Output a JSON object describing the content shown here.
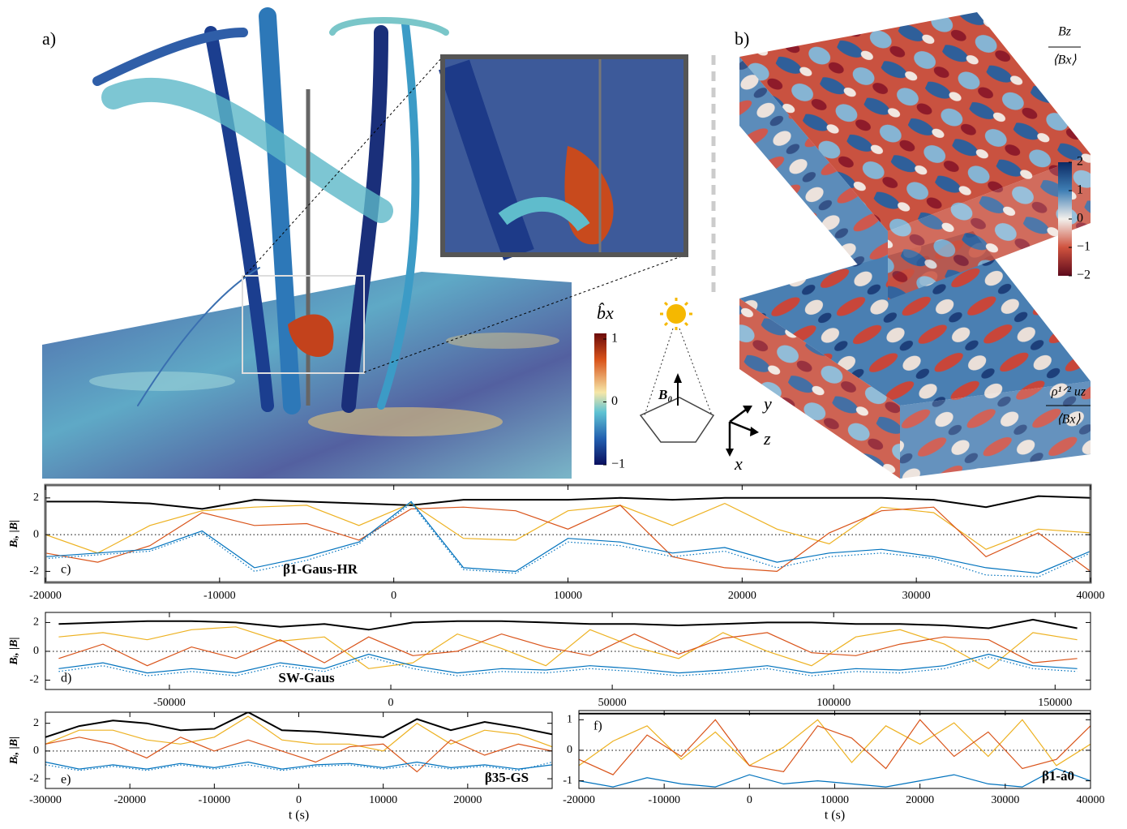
{
  "panel_a": {
    "label": "a)",
    "colorbar": {
      "label": "b̂x",
      "lim": [
        -1,
        1
      ],
      "ticks": [
        1,
        0,
        {
          "value": -1,
          "label": "−1"
        }
      ]
    },
    "diagram": {
      "field": "B₀",
      "axes": [
        "y",
        "z",
        "x"
      ]
    }
  },
  "panel_b": {
    "label": "b)",
    "top_label": {
      "numerator": "Bz",
      "denominator": "⟨Bx⟩"
    },
    "bottom_label": {
      "numerator": "ρ¹ᐟ² uz",
      "denominator": "⟨Bx⟩"
    },
    "colorbar": {
      "lim": [
        -2,
        2
      ],
      "ticks": [
        2,
        1,
        0,
        {
          "value": -1,
          "label": "−1"
        },
        {
          "value": -2,
          "label": "−2"
        }
      ]
    }
  },
  "chart_data": [
    {
      "type": "line",
      "panel_label": "c)",
      "annotation": "β1-Gaus-HR",
      "ylabel": "Bᵢ, |B|",
      "hline": 0,
      "x": [
        -20000,
        -17000,
        -14000,
        -11000,
        -8000,
        -5000,
        -2000,
        1000,
        4000,
        7000,
        10000,
        13000,
        16000,
        19000,
        22000,
        25000,
        28000,
        31000,
        34000,
        37000,
        40000
      ],
      "xlim": [
        -20000,
        40000
      ],
      "xticks": [
        -20000,
        -10000,
        0,
        10000,
        20000,
        30000,
        40000
      ],
      "ylim": [
        -2.6,
        2.7
      ],
      "yticks": [
        -2,
        0,
        2
      ],
      "series": [
        {
          "color": "#000000",
          "values": [
            1.8,
            1.8,
            1.7,
            1.4,
            1.9,
            1.8,
            1.7,
            1.6,
            1.9,
            1.9,
            1.9,
            2.0,
            1.9,
            2.0,
            2.0,
            2.0,
            2.0,
            1.9,
            1.5,
            2.1,
            2.0
          ]
        },
        {
          "color": "#edb120",
          "values": [
            0,
            -1,
            0.5,
            1.3,
            1.5,
            1.6,
            0.5,
            1.7,
            -0.2,
            -0.3,
            1.3,
            1.6,
            0.5,
            1.7,
            0.3,
            -0.5,
            1.5,
            1.2,
            -0.8,
            0.3,
            0.1
          ]
        },
        {
          "color": "#d95319",
          "values": [
            -1,
            -1.5,
            -0.6,
            1.2,
            0.5,
            0.6,
            -0.3,
            1.4,
            1.5,
            1.3,
            0.3,
            1.6,
            -1.2,
            -1.8,
            -2.0,
            0.1,
            1.3,
            1.5,
            -1.2,
            0.1,
            -2
          ]
        },
        {
          "color": "#0072bd",
          "values": [
            -1.2,
            -1.0,
            -0.8,
            0.2,
            -1.8,
            -1.2,
            -0.4,
            1.8,
            -1.8,
            -2.0,
            -0.2,
            -0.4,
            -1.0,
            -0.7,
            -1.5,
            -1.0,
            -0.8,
            -1.2,
            -1.8,
            -2.1,
            -0.9
          ]
        },
        {
          "color": "#0072bd",
          "linestyle": "dotted",
          "values": [
            -1.3,
            -1.1,
            -0.9,
            0.1,
            -2.0,
            -1.4,
            -0.5,
            1.7,
            -1.9,
            -2.1,
            -0.4,
            -0.6,
            -1.2,
            -0.9,
            -1.8,
            -1.2,
            -1.0,
            -1.3,
            -2.2,
            -2.3,
            -1.0
          ]
        }
      ]
    },
    {
      "type": "line",
      "panel_label": "d)",
      "annotation": "SW-Gaus",
      "ylabel": "Bᵢ, |B|",
      "hline": 0,
      "x": [
        -75000,
        -65000,
        -55000,
        -45000,
        -35000,
        -25000,
        -15000,
        -5000,
        5000,
        15000,
        25000,
        35000,
        45000,
        55000,
        65000,
        75000,
        85000,
        95000,
        105000,
        115000,
        125000,
        135000,
        145000,
        155000
      ],
      "xlim": [
        -78000,
        158000
      ],
      "xticks": [
        -50000,
        0,
        50000,
        100000,
        150000
      ],
      "ylim": [
        -2.65,
        2.7
      ],
      "yticks": [
        -2,
        0,
        2
      ],
      "series": [
        {
          "color": "#000000",
          "values": [
            1.9,
            2.0,
            2.1,
            2.1,
            2.0,
            1.7,
            1.9,
            1.5,
            2.0,
            2.1,
            2.1,
            2.0,
            1.9,
            1.9,
            1.8,
            1.9,
            2.0,
            2.0,
            1.9,
            1.9,
            1.8,
            1.6,
            2.2,
            1.6
          ]
        },
        {
          "color": "#edb120",
          "values": [
            1.0,
            1.3,
            0.8,
            1.5,
            1.7,
            0.7,
            1.0,
            -1.2,
            -0.8,
            1.2,
            0.2,
            -1.0,
            1.5,
            0.3,
            -0.5,
            1.3,
            0.0,
            -1.0,
            1.0,
            1.5,
            0.5,
            -1.2,
            1.3,
            0.8
          ]
        },
        {
          "color": "#d95319",
          "values": [
            -0.5,
            0.5,
            -1.0,
            0.3,
            -0.5,
            0.8,
            -0.8,
            1.0,
            -0.3,
            0.0,
            1.2,
            0.3,
            -0.3,
            1.2,
            -0.2,
            0.9,
            1.3,
            -0.1,
            -0.3,
            0.5,
            1.0,
            0.8,
            -0.8,
            -0.5
          ]
        },
        {
          "color": "#0072bd",
          "values": [
            -1.2,
            -0.8,
            -1.5,
            -1.2,
            -1.5,
            -0.8,
            -1.2,
            -0.2,
            -1.0,
            -1.5,
            -1.2,
            -1.3,
            -1.0,
            -1.2,
            -1.5,
            -1.3,
            -1.0,
            -1.5,
            -1.2,
            -1.3,
            -1.0,
            -0.2,
            -1.0,
            -1.2
          ]
        },
        {
          "color": "#0072bd",
          "linestyle": "dotted",
          "values": [
            -1.4,
            -1.0,
            -1.7,
            -1.4,
            -1.7,
            -1.0,
            -1.4,
            -0.4,
            -1.2,
            -1.7,
            -1.4,
            -1.5,
            -1.2,
            -1.4,
            -1.7,
            -1.5,
            -1.2,
            -1.7,
            -1.4,
            -1.5,
            -1.2,
            -0.4,
            -1.2,
            -1.4
          ]
        }
      ]
    },
    {
      "type": "line",
      "panel_label": "e)",
      "annotation": "β35-GS",
      "ylabel": "Bᵢ, |B|",
      "xlabel": "t (s)",
      "hline": 0,
      "x": [
        -30000,
        -26000,
        -22000,
        -18000,
        -14000,
        -10000,
        -6000,
        -2000,
        2000,
        6000,
        10000,
        14000,
        18000,
        22000,
        26000,
        30000
      ],
      "xlim": [
        -30000,
        30000
      ],
      "xticks": [
        -30000,
        -20000,
        -10000,
        0,
        10000,
        20000
      ],
      "ylim": [
        -2.7,
        2.8
      ],
      "yticks": [
        -2,
        0,
        2
      ],
      "series": [
        {
          "color": "#000000",
          "values": [
            1.0,
            1.8,
            2.2,
            2.0,
            1.5,
            1.6,
            2.8,
            1.5,
            1.4,
            1.2,
            1.0,
            2.3,
            1.5,
            2.1,
            1.7,
            1.2
          ]
        },
        {
          "color": "#edb120",
          "values": [
            0.5,
            1.5,
            1.5,
            0.8,
            0.5,
            1.0,
            2.5,
            0.8,
            0.5,
            0.5,
            0.0,
            2.0,
            0.5,
            1.5,
            1.2,
            0.3
          ]
        },
        {
          "color": "#d95319",
          "values": [
            0.5,
            1.0,
            0.5,
            -0.5,
            1.0,
            0.0,
            0.8,
            0.0,
            -0.8,
            0.3,
            0.5,
            -1.5,
            0.8,
            -0.3,
            0.5,
            0.0
          ]
        },
        {
          "color": "#0072bd",
          "values": [
            -0.8,
            -1.3,
            -1.0,
            -1.3,
            -0.9,
            -1.2,
            -0.8,
            -1.3,
            -1.0,
            -0.9,
            -1.2,
            -0.8,
            -1.2,
            -1.0,
            -1.3,
            -1.0
          ]
        },
        {
          "color": "#0072bd",
          "linestyle": "dotted",
          "values": [
            -1.0,
            -1.4,
            -1.1,
            -1.4,
            -1.0,
            -1.3,
            -1.0,
            -1.4,
            -1.1,
            -1.0,
            -1.3,
            -1.0,
            -1.3,
            -1.1,
            -1.4,
            -0.8
          ]
        }
      ]
    },
    {
      "type": "line",
      "panel_label": "f)",
      "annotation": "β1-á0",
      "xlabel": "t (s)",
      "hline": 0,
      "x": [
        -20000,
        -16000,
        -12000,
        -8000,
        -4000,
        0,
        4000,
        8000,
        12000,
        16000,
        20000,
        24000,
        28000,
        32000,
        36000,
        40000
      ],
      "xlim": [
        -20000,
        40000
      ],
      "xticks": [
        -20000,
        -10000,
        0,
        10000,
        20000,
        30000,
        40000
      ],
      "ylim": [
        -1.25,
        1.3
      ],
      "yticks": [
        -1,
        0,
        1
      ],
      "series": [
        {
          "color": "#000000",
          "values": [
            1.2,
            1.2,
            1.2,
            1.2,
            1.2,
            1.2,
            1.2,
            1.2,
            1.2,
            1.2,
            1.2,
            1.2,
            1.2,
            1.2,
            1.2,
            1.2
          ]
        },
        {
          "color": "#edb120",
          "values": [
            -0.5,
            0.3,
            0.8,
            -0.3,
            0.6,
            -0.5,
            0.1,
            1.0,
            -0.4,
            0.8,
            0.2,
            0.9,
            -0.2,
            1.0,
            -0.5,
            0.2
          ]
        },
        {
          "color": "#d95319",
          "values": [
            -0.3,
            -0.8,
            0.5,
            -0.2,
            1.0,
            -0.5,
            -0.7,
            0.8,
            0.4,
            -0.6,
            1.0,
            -0.2,
            0.6,
            -0.6,
            -0.3,
            0.8
          ]
        },
        {
          "color": "#0072bd",
          "values": [
            -1.0,
            -1.2,
            -0.9,
            -1.1,
            -1.2,
            -0.8,
            -1.1,
            -1.0,
            -1.1,
            -1.2,
            -1.0,
            -0.8,
            -1.1,
            -1.2,
            -0.6,
            -1.0
          ]
        }
      ]
    }
  ]
}
